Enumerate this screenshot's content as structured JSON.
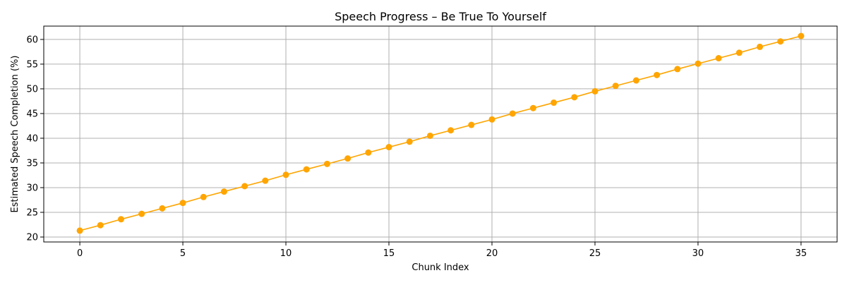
{
  "chart_data": {
    "type": "line",
    "title": "Speech Progress – Be True To Yourself",
    "xlabel": "Chunk Index",
    "ylabel": "Estimated Speech Completion (%)",
    "xlim": [
      -1.75,
      36.75
    ],
    "ylim": [
      19.0,
      62.7
    ],
    "x_ticks": [
      0,
      5,
      10,
      15,
      20,
      25,
      30,
      35
    ],
    "y_ticks": [
      20,
      25,
      30,
      35,
      40,
      45,
      50,
      55,
      60
    ],
    "grid": true,
    "color": "#ffa500",
    "series": [
      {
        "x": [
          0,
          1,
          2,
          3,
          4,
          5,
          6,
          7,
          8,
          9,
          10,
          11,
          12,
          13,
          14,
          15,
          16,
          17,
          18,
          19,
          20,
          21,
          22,
          23,
          24,
          25,
          26,
          27,
          28,
          29,
          30,
          31,
          32,
          33,
          34,
          35
        ],
        "values": [
          21.3,
          22.4,
          23.6,
          24.7,
          25.8,
          26.9,
          28.1,
          29.2,
          30.3,
          31.4,
          32.6,
          33.7,
          34.8,
          35.9,
          37.1,
          38.2,
          39.3,
          40.5,
          41.6,
          42.7,
          43.8,
          45.0,
          46.1,
          47.2,
          48.3,
          49.5,
          50.6,
          51.7,
          52.8,
          54.0,
          55.1,
          56.2,
          57.3,
          58.5,
          59.6,
          60.7
        ]
      }
    ]
  }
}
